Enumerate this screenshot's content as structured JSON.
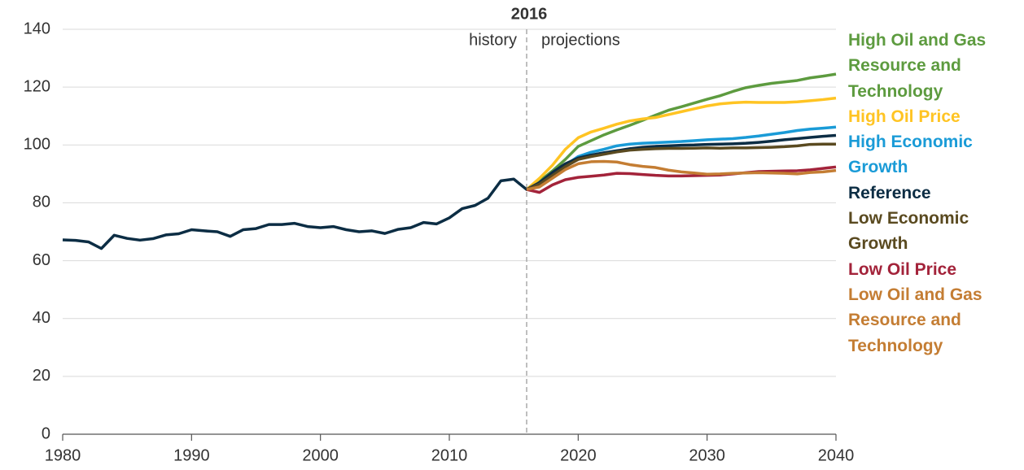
{
  "chart_data": {
    "type": "line",
    "divider_year": 2016,
    "annotations": [
      "history",
      "projections"
    ],
    "x": [
      1980,
      1981,
      1982,
      1983,
      1984,
      1985,
      1986,
      1987,
      1988,
      1989,
      1990,
      1991,
      1992,
      1993,
      1994,
      1995,
      1996,
      1997,
      1998,
      1999,
      2000,
      2001,
      2002,
      2003,
      2004,
      2005,
      2006,
      2007,
      2008,
      2009,
      2010,
      2011,
      2012,
      2013,
      2014,
      2015,
      2016,
      2017,
      2018,
      2019,
      2020,
      2021,
      2022,
      2023,
      2024,
      2025,
      2026,
      2027,
      2028,
      2029,
      2030,
      2031,
      2032,
      2033,
      2034,
      2035,
      2036,
      2037,
      2038,
      2039,
      2040
    ],
    "series": [
      {
        "name": "High Oil and Gas Resource and Technology",
        "color": "#5d9b3f",
        "values": [
          null,
          null,
          null,
          null,
          null,
          null,
          null,
          null,
          null,
          null,
          null,
          null,
          null,
          null,
          null,
          null,
          null,
          null,
          null,
          null,
          null,
          null,
          null,
          null,
          null,
          null,
          null,
          null,
          null,
          null,
          null,
          null,
          null,
          null,
          null,
          null,
          84.6,
          87.5,
          91,
          95,
          99.5,
          101.5,
          103.5,
          105.2,
          106.8,
          108.5,
          110.3,
          112,
          113.2,
          114.5,
          115.8,
          117,
          118.5,
          119.8,
          120.6,
          121.3,
          121.8,
          122.3,
          123.2,
          123.8,
          124.5
        ]
      },
      {
        "name": "High Oil Price",
        "color": "#ffc423",
        "values": [
          null,
          null,
          null,
          null,
          null,
          null,
          null,
          null,
          null,
          null,
          null,
          null,
          null,
          null,
          null,
          null,
          null,
          null,
          null,
          null,
          null,
          null,
          null,
          null,
          null,
          null,
          null,
          null,
          null,
          null,
          null,
          null,
          null,
          null,
          null,
          null,
          84.6,
          88.5,
          93,
          98.5,
          102.5,
          104.5,
          105.8,
          107.2,
          108.3,
          109,
          109.5,
          110.5,
          111.5,
          112.5,
          113.5,
          114.2,
          114.6,
          114.8,
          114.7,
          114.7,
          114.7,
          114.9,
          115.3,
          115.7,
          116.2
        ]
      },
      {
        "name": "High Economic Growth",
        "color": "#1a9bd7",
        "values": [
          null,
          null,
          null,
          null,
          null,
          null,
          null,
          null,
          null,
          null,
          null,
          null,
          null,
          null,
          null,
          null,
          null,
          null,
          null,
          null,
          null,
          null,
          null,
          null,
          null,
          null,
          null,
          null,
          null,
          null,
          null,
          null,
          null,
          null,
          null,
          null,
          84.6,
          86,
          89.5,
          93,
          96,
          97.5,
          98.5,
          99.7,
          100.3,
          100.6,
          100.8,
          101,
          101.2,
          101.5,
          101.8,
          102,
          102.2,
          102.6,
          103.1,
          103.7,
          104.3,
          105,
          105.5,
          105.8,
          106.2
        ]
      },
      {
        "name": "Reference",
        "color": "#0c2d44",
        "values": [
          67.2,
          67,
          66.5,
          64.2,
          68.8,
          67.7,
          67.1,
          67.6,
          68.9,
          69.3,
          70.7,
          70.3,
          70,
          68.4,
          70.7,
          71.1,
          72.5,
          72.5,
          72.9,
          71.8,
          71.4,
          71.8,
          70.7,
          70,
          70.3,
          69.4,
          70.8,
          71.4,
          73.2,
          72.7,
          74.8,
          78,
          79.1,
          81.6,
          87.6,
          88.2,
          84.6,
          87,
          90.5,
          93.5,
          95.5,
          96.5,
          97.3,
          98,
          98.7,
          99.2,
          99.5,
          99.7,
          99.9,
          100,
          100.2,
          100.3,
          100.4,
          100.6,
          100.9,
          101.3,
          101.8,
          102.2,
          102.6,
          103,
          103.3
        ]
      },
      {
        "name": "Low Economic Growth",
        "color": "#5a4a20",
        "values": [
          null,
          null,
          null,
          null,
          null,
          null,
          null,
          null,
          null,
          null,
          null,
          null,
          null,
          null,
          null,
          null,
          null,
          null,
          null,
          null,
          null,
          null,
          null,
          null,
          null,
          null,
          null,
          null,
          null,
          null,
          null,
          null,
          null,
          null,
          null,
          null,
          84.6,
          86.5,
          89.5,
          92.5,
          95,
          96,
          96.8,
          97.6,
          98.2,
          98.5,
          98.7,
          98.8,
          98.8,
          98.9,
          99,
          98.9,
          99,
          99,
          99.1,
          99.2,
          99.4,
          99.7,
          100.2,
          100.3,
          100.3
        ]
      },
      {
        "name": "Low Oil Price",
        "color": "#a3233a",
        "values": [
          null,
          null,
          null,
          null,
          null,
          null,
          null,
          null,
          null,
          null,
          null,
          null,
          null,
          null,
          null,
          null,
          null,
          null,
          null,
          null,
          null,
          null,
          null,
          null,
          null,
          null,
          null,
          null,
          null,
          null,
          null,
          null,
          null,
          null,
          null,
          null,
          84.6,
          83.6,
          86.2,
          88,
          88.8,
          89.2,
          89.6,
          90.2,
          90.1,
          89.8,
          89.5,
          89.3,
          89.3,
          89.4,
          89.5,
          89.6,
          90,
          90.4,
          90.8,
          90.9,
          91,
          91.1,
          91.4,
          91.9,
          92.4
        ]
      },
      {
        "name": "Low Oil and Gas Resource and Technology",
        "color": "#c47d33",
        "values": [
          null,
          null,
          null,
          null,
          null,
          null,
          null,
          null,
          null,
          null,
          null,
          null,
          null,
          null,
          null,
          null,
          null,
          null,
          null,
          null,
          null,
          null,
          null,
          null,
          null,
          null,
          null,
          null,
          null,
          null,
          null,
          null,
          null,
          null,
          null,
          null,
          84.6,
          85.5,
          88.5,
          91.5,
          93.5,
          94.2,
          94.3,
          94.1,
          93.2,
          92.6,
          92.2,
          91.3,
          90.7,
          90.3,
          89.9,
          90,
          90.2,
          90.3,
          90.4,
          90.3,
          90.2,
          90,
          90.5,
          90.7,
          91.2
        ]
      }
    ],
    "xlim": [
      1980,
      2040
    ],
    "xticks": [
      1980,
      1990,
      2000,
      2010,
      2020,
      2030,
      2040
    ],
    "ylim": [
      0,
      140
    ],
    "yticks": [
      0,
      20,
      40,
      60,
      80,
      100,
      120,
      140
    ],
    "grid": true
  }
}
